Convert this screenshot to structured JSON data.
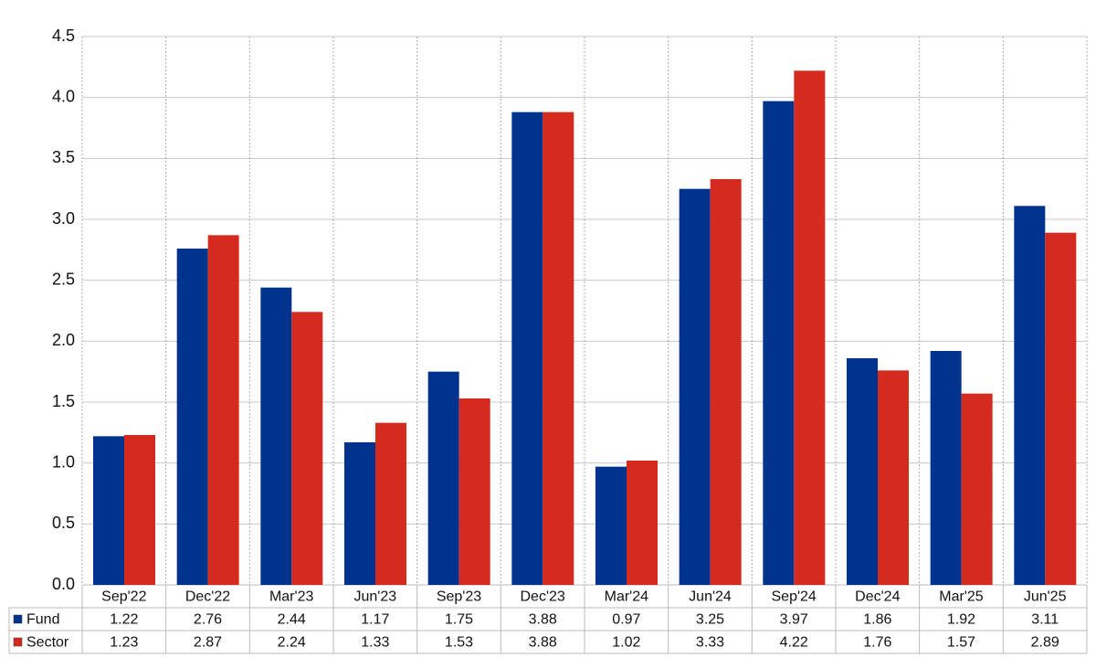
{
  "chart_data": {
    "type": "bar",
    "categories": [
      "Sep'22",
      "Dec'22",
      "Mar'23",
      "Jun'23",
      "Sep'23",
      "Dec'23",
      "Mar'24",
      "Jun'24",
      "Sep'24",
      "Dec'24",
      "Mar'25",
      "Jun'25"
    ],
    "series": [
      {
        "name": "Fund",
        "color": "#00338d",
        "values": [
          1.22,
          2.76,
          2.44,
          1.17,
          1.75,
          3.88,
          0.97,
          3.25,
          3.97,
          1.86,
          1.92,
          3.11
        ]
      },
      {
        "name": "Sector",
        "color": "#d52b1e",
        "values": [
          1.23,
          2.87,
          2.24,
          1.33,
          1.53,
          3.88,
          1.02,
          3.33,
          4.22,
          1.76,
          1.57,
          2.89
        ]
      }
    ],
    "ylim": [
      0,
      4.5
    ],
    "yticks": [
      {
        "value": 0,
        "label": "0.0"
      },
      0.5,
      {
        "value": 1,
        "label": "1.0"
      },
      1.5,
      {
        "value": 2,
        "label": "2.0"
      },
      2.5,
      {
        "value": 3,
        "label": "3.0"
      },
      3.5,
      {
        "value": 4,
        "label": "4.0"
      },
      4.5
    ],
    "grid": true
  }
}
